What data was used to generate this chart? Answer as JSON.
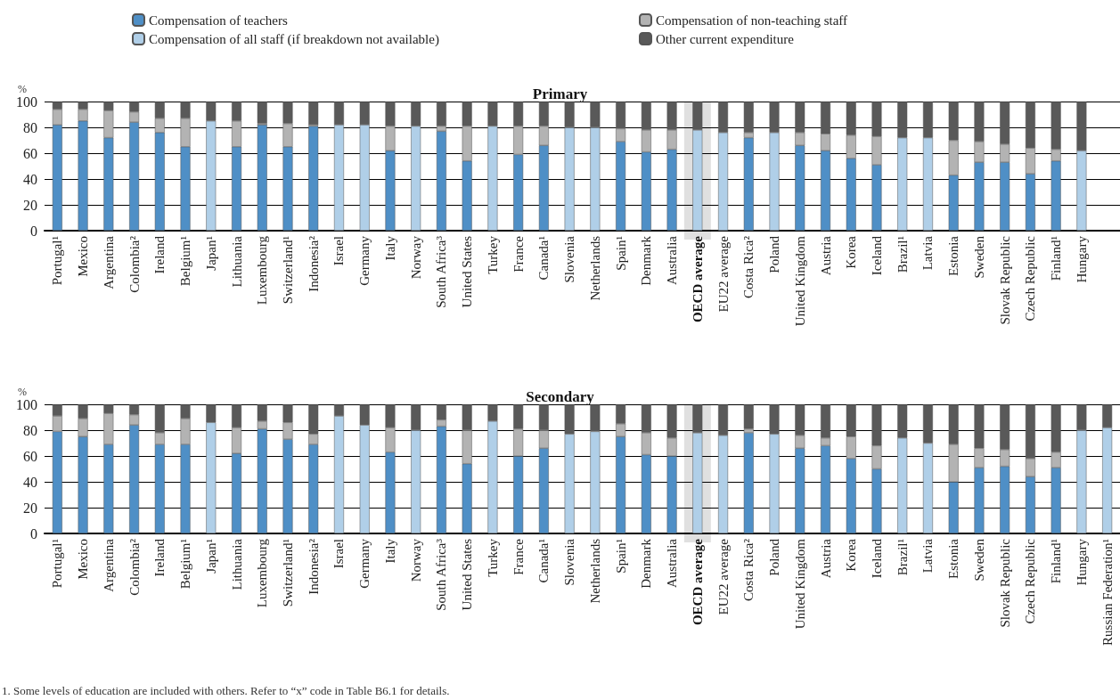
{
  "chart_data": [
    {
      "type": "bar",
      "title": "Primary",
      "ylabel": "%",
      "stacked": true,
      "legend": "top",
      "grid": "y",
      "categories": [
        "Portugal¹",
        "Mexico",
        "Argentina",
        "Colombia²",
        "Ireland",
        "Belgium¹",
        "Japan¹",
        "Lithuania",
        "Luxembourg",
        "Switzerland¹",
        "Indonesia²",
        "Israel",
        "Germany",
        "Italy",
        "Norway",
        "South Africa³",
        "United States",
        "Turkey",
        "France",
        "Canada¹",
        "Slovenia",
        "Netherlands",
        "Spain¹",
        "Denmark",
        "Australia",
        "OECD average",
        "EU22 average",
        "Costa Rica²",
        "Poland",
        "United Kingdom",
        "Austria",
        "Korea",
        "Iceland",
        "Brazil¹",
        "Latvia",
        "Estonia",
        "Sweden",
        "Slovak Republic",
        "Czech Republic",
        "Finland¹",
        "Hungary",
        null
      ],
      "ylim": [
        0,
        100
      ],
      "yticks": [
        0,
        20,
        40,
        60,
        80,
        100
      ],
      "bands": [
        {
          "axis": "x",
          "from": "OECD average",
          "to": "OECD average",
          "color": "#e0e0e0"
        }
      ],
      "series": [
        {
          "name": "Compensation of teachers",
          "color": "#4f8fc6",
          "values": [
            82,
            85,
            72,
            84,
            76,
            65,
            null,
            65,
            82,
            65,
            81,
            null,
            null,
            62,
            null,
            77,
            54,
            null,
            59,
            66,
            null,
            null,
            69,
            61,
            63,
            null,
            null,
            72,
            null,
            66,
            62,
            56,
            51,
            null,
            null,
            43,
            53,
            53,
            44,
            54,
            null,
            null
          ]
        },
        {
          "name": "Compensation of non-teaching staff",
          "color": "#b3b3b3",
          "values": [
            12,
            9,
            21,
            8,
            11,
            22,
            null,
            20,
            1,
            18,
            1,
            null,
            null,
            19,
            null,
            4,
            27,
            null,
            22,
            15,
            null,
            null,
            10,
            17,
            15,
            null,
            null,
            4,
            null,
            10,
            13,
            18,
            22,
            null,
            null,
            27,
            16,
            14,
            20,
            9,
            null,
            null
          ]
        },
        {
          "name": "Compensation of all staff (if breakdown not available)",
          "color": "#b0cfe8",
          "values": [
            null,
            null,
            null,
            null,
            null,
            null,
            85,
            null,
            null,
            null,
            null,
            82,
            82,
            null,
            81,
            null,
            null,
            81,
            null,
            null,
            80,
            80,
            null,
            null,
            null,
            78,
            76,
            null,
            76,
            null,
            null,
            null,
            null,
            72,
            72,
            null,
            null,
            null,
            null,
            null,
            62,
            null
          ]
        },
        {
          "name": "Other current expenditure",
          "color": "#595959",
          "values": [
            6,
            6,
            7,
            8,
            13,
            13,
            15,
            15,
            17,
            17,
            18,
            18,
            18,
            19,
            19,
            19,
            19,
            19,
            19,
            19,
            20,
            20,
            21,
            22,
            22,
            22,
            24,
            24,
            24,
            24,
            25,
            26,
            27,
            28,
            28,
            30,
            31,
            33,
            36,
            37,
            38,
            null
          ]
        }
      ]
    },
    {
      "type": "bar",
      "title": "Secondary",
      "ylabel": "%",
      "stacked": true,
      "grid": "y",
      "categories": [
        "Portugal¹",
        "Mexico",
        "Argentina",
        "Colombia²",
        "Ireland",
        "Belgium¹",
        "Japan¹",
        "Lithuania",
        "Luxembourg",
        "Switzerland¹",
        "Indonesia²",
        "Israel",
        "Germany",
        "Italy",
        "Norway",
        "South Africa³",
        "United States",
        "Turkey",
        "France",
        "Canada¹",
        "Slovenia",
        "Netherlands",
        "Spain¹",
        "Denmark",
        "Australia",
        "OECD average",
        "EU22 average",
        "Costa Rica²",
        "Poland",
        "United Kingdom",
        "Austria",
        "Korea",
        "Iceland",
        "Brazil¹",
        "Latvia",
        "Estonia",
        "Sweden",
        "Slovak Republic",
        "Czech Republic",
        "Finland¹",
        "Hungary",
        "Russian Federation¹"
      ],
      "ylim": [
        0,
        100
      ],
      "yticks": [
        0,
        20,
        40,
        60,
        80,
        100
      ],
      "bands": [
        {
          "axis": "x",
          "from": "OECD average",
          "to": "OECD average",
          "color": "#e0e0e0"
        }
      ],
      "annotations": [
        "1. Some levels of education are included with others. Refer to “x” code in Table B6.1 for details."
      ],
      "series": [
        {
          "color": "#4f8fc6",
          "values": [
            79,
            75,
            69,
            84,
            69,
            69,
            null,
            62,
            81,
            73,
            69,
            null,
            null,
            63,
            null,
            83,
            54,
            null,
            60,
            66,
            null,
            null,
            75,
            61,
            60,
            null,
            null,
            78,
            null,
            66,
            68,
            58,
            50,
            null,
            null,
            40,
            51,
            52,
            44,
            51,
            null,
            null
          ]
        },
        {
          "color": "#b3b3b3",
          "values": [
            12,
            14,
            24,
            8,
            9,
            20,
            null,
            20,
            6,
            13,
            8,
            null,
            null,
            19,
            null,
            5,
            26,
            null,
            21,
            14,
            null,
            null,
            10,
            17,
            14,
            null,
            null,
            3,
            null,
            10,
            6,
            17,
            18,
            null,
            null,
            29,
            15,
            13,
            14,
            12,
            null,
            null
          ]
        },
        {
          "color": "#b0cfe8",
          "values": [
            null,
            null,
            null,
            null,
            null,
            null,
            86,
            null,
            null,
            null,
            null,
            91,
            84,
            null,
            80,
            null,
            null,
            87,
            null,
            null,
            77,
            79,
            null,
            null,
            null,
            78,
            76,
            null,
            77,
            null,
            null,
            null,
            null,
            74,
            70,
            null,
            null,
            null,
            null,
            null,
            80,
            82
          ]
        },
        {
          "color": "#595959",
          "values": [
            9,
            11,
            7,
            8,
            22,
            11,
            14,
            18,
            13,
            14,
            23,
            9,
            16,
            18,
            20,
            12,
            20,
            13,
            19,
            20,
            23,
            21,
            15,
            22,
            26,
            22,
            24,
            19,
            23,
            24,
            26,
            25,
            32,
            26,
            30,
            31,
            34,
            35,
            42,
            37,
            20,
            18
          ]
        }
      ]
    }
  ]
}
